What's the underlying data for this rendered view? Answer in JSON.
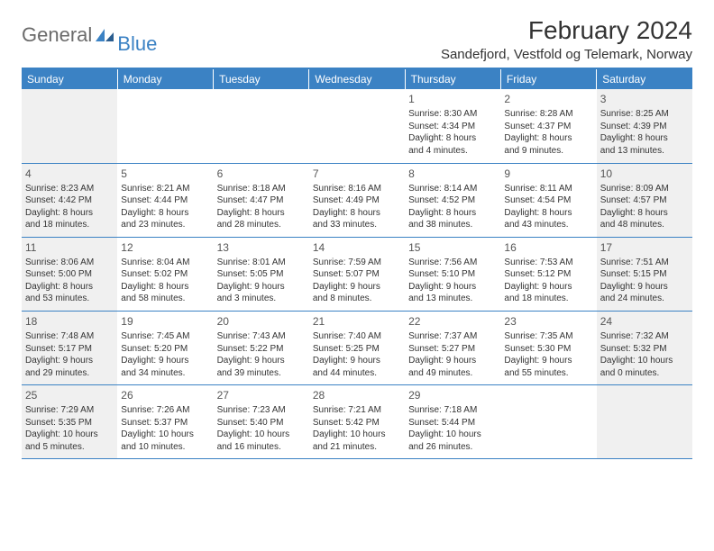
{
  "logo": {
    "text1": "General",
    "text2": "Blue"
  },
  "title": "February 2024",
  "location": "Sandefjord, Vestfold og Telemark, Norway",
  "colors": {
    "accent": "#3b82c4",
    "weekend_bg": "#f0f0f0"
  },
  "day_headers": [
    "Sunday",
    "Monday",
    "Tuesday",
    "Wednesday",
    "Thursday",
    "Friday",
    "Saturday"
  ],
  "weeks": [
    [
      null,
      null,
      null,
      null,
      {
        "n": "1",
        "sr": "Sunrise: 8:30 AM",
        "ss": "Sunset: 4:34 PM",
        "d1": "Daylight: 8 hours",
        "d2": "and 4 minutes."
      },
      {
        "n": "2",
        "sr": "Sunrise: 8:28 AM",
        "ss": "Sunset: 4:37 PM",
        "d1": "Daylight: 8 hours",
        "d2": "and 9 minutes."
      },
      {
        "n": "3",
        "sr": "Sunrise: 8:25 AM",
        "ss": "Sunset: 4:39 PM",
        "d1": "Daylight: 8 hours",
        "d2": "and 13 minutes."
      }
    ],
    [
      {
        "n": "4",
        "sr": "Sunrise: 8:23 AM",
        "ss": "Sunset: 4:42 PM",
        "d1": "Daylight: 8 hours",
        "d2": "and 18 minutes."
      },
      {
        "n": "5",
        "sr": "Sunrise: 8:21 AM",
        "ss": "Sunset: 4:44 PM",
        "d1": "Daylight: 8 hours",
        "d2": "and 23 minutes."
      },
      {
        "n": "6",
        "sr": "Sunrise: 8:18 AM",
        "ss": "Sunset: 4:47 PM",
        "d1": "Daylight: 8 hours",
        "d2": "and 28 minutes."
      },
      {
        "n": "7",
        "sr": "Sunrise: 8:16 AM",
        "ss": "Sunset: 4:49 PM",
        "d1": "Daylight: 8 hours",
        "d2": "and 33 minutes."
      },
      {
        "n": "8",
        "sr": "Sunrise: 8:14 AM",
        "ss": "Sunset: 4:52 PM",
        "d1": "Daylight: 8 hours",
        "d2": "and 38 minutes."
      },
      {
        "n": "9",
        "sr": "Sunrise: 8:11 AM",
        "ss": "Sunset: 4:54 PM",
        "d1": "Daylight: 8 hours",
        "d2": "and 43 minutes."
      },
      {
        "n": "10",
        "sr": "Sunrise: 8:09 AM",
        "ss": "Sunset: 4:57 PM",
        "d1": "Daylight: 8 hours",
        "d2": "and 48 minutes."
      }
    ],
    [
      {
        "n": "11",
        "sr": "Sunrise: 8:06 AM",
        "ss": "Sunset: 5:00 PM",
        "d1": "Daylight: 8 hours",
        "d2": "and 53 minutes."
      },
      {
        "n": "12",
        "sr": "Sunrise: 8:04 AM",
        "ss": "Sunset: 5:02 PM",
        "d1": "Daylight: 8 hours",
        "d2": "and 58 minutes."
      },
      {
        "n": "13",
        "sr": "Sunrise: 8:01 AM",
        "ss": "Sunset: 5:05 PM",
        "d1": "Daylight: 9 hours",
        "d2": "and 3 minutes."
      },
      {
        "n": "14",
        "sr": "Sunrise: 7:59 AM",
        "ss": "Sunset: 5:07 PM",
        "d1": "Daylight: 9 hours",
        "d2": "and 8 minutes."
      },
      {
        "n": "15",
        "sr": "Sunrise: 7:56 AM",
        "ss": "Sunset: 5:10 PM",
        "d1": "Daylight: 9 hours",
        "d2": "and 13 minutes."
      },
      {
        "n": "16",
        "sr": "Sunrise: 7:53 AM",
        "ss": "Sunset: 5:12 PM",
        "d1": "Daylight: 9 hours",
        "d2": "and 18 minutes."
      },
      {
        "n": "17",
        "sr": "Sunrise: 7:51 AM",
        "ss": "Sunset: 5:15 PM",
        "d1": "Daylight: 9 hours",
        "d2": "and 24 minutes."
      }
    ],
    [
      {
        "n": "18",
        "sr": "Sunrise: 7:48 AM",
        "ss": "Sunset: 5:17 PM",
        "d1": "Daylight: 9 hours",
        "d2": "and 29 minutes."
      },
      {
        "n": "19",
        "sr": "Sunrise: 7:45 AM",
        "ss": "Sunset: 5:20 PM",
        "d1": "Daylight: 9 hours",
        "d2": "and 34 minutes."
      },
      {
        "n": "20",
        "sr": "Sunrise: 7:43 AM",
        "ss": "Sunset: 5:22 PM",
        "d1": "Daylight: 9 hours",
        "d2": "and 39 minutes."
      },
      {
        "n": "21",
        "sr": "Sunrise: 7:40 AM",
        "ss": "Sunset: 5:25 PM",
        "d1": "Daylight: 9 hours",
        "d2": "and 44 minutes."
      },
      {
        "n": "22",
        "sr": "Sunrise: 7:37 AM",
        "ss": "Sunset: 5:27 PM",
        "d1": "Daylight: 9 hours",
        "d2": "and 49 minutes."
      },
      {
        "n": "23",
        "sr": "Sunrise: 7:35 AM",
        "ss": "Sunset: 5:30 PM",
        "d1": "Daylight: 9 hours",
        "d2": "and 55 minutes."
      },
      {
        "n": "24",
        "sr": "Sunrise: 7:32 AM",
        "ss": "Sunset: 5:32 PM",
        "d1": "Daylight: 10 hours",
        "d2": "and 0 minutes."
      }
    ],
    [
      {
        "n": "25",
        "sr": "Sunrise: 7:29 AM",
        "ss": "Sunset: 5:35 PM",
        "d1": "Daylight: 10 hours",
        "d2": "and 5 minutes."
      },
      {
        "n": "26",
        "sr": "Sunrise: 7:26 AM",
        "ss": "Sunset: 5:37 PM",
        "d1": "Daylight: 10 hours",
        "d2": "and 10 minutes."
      },
      {
        "n": "27",
        "sr": "Sunrise: 7:23 AM",
        "ss": "Sunset: 5:40 PM",
        "d1": "Daylight: 10 hours",
        "d2": "and 16 minutes."
      },
      {
        "n": "28",
        "sr": "Sunrise: 7:21 AM",
        "ss": "Sunset: 5:42 PM",
        "d1": "Daylight: 10 hours",
        "d2": "and 21 minutes."
      },
      {
        "n": "29",
        "sr": "Sunrise: 7:18 AM",
        "ss": "Sunset: 5:44 PM",
        "d1": "Daylight: 10 hours",
        "d2": "and 26 minutes."
      },
      null,
      null
    ]
  ]
}
